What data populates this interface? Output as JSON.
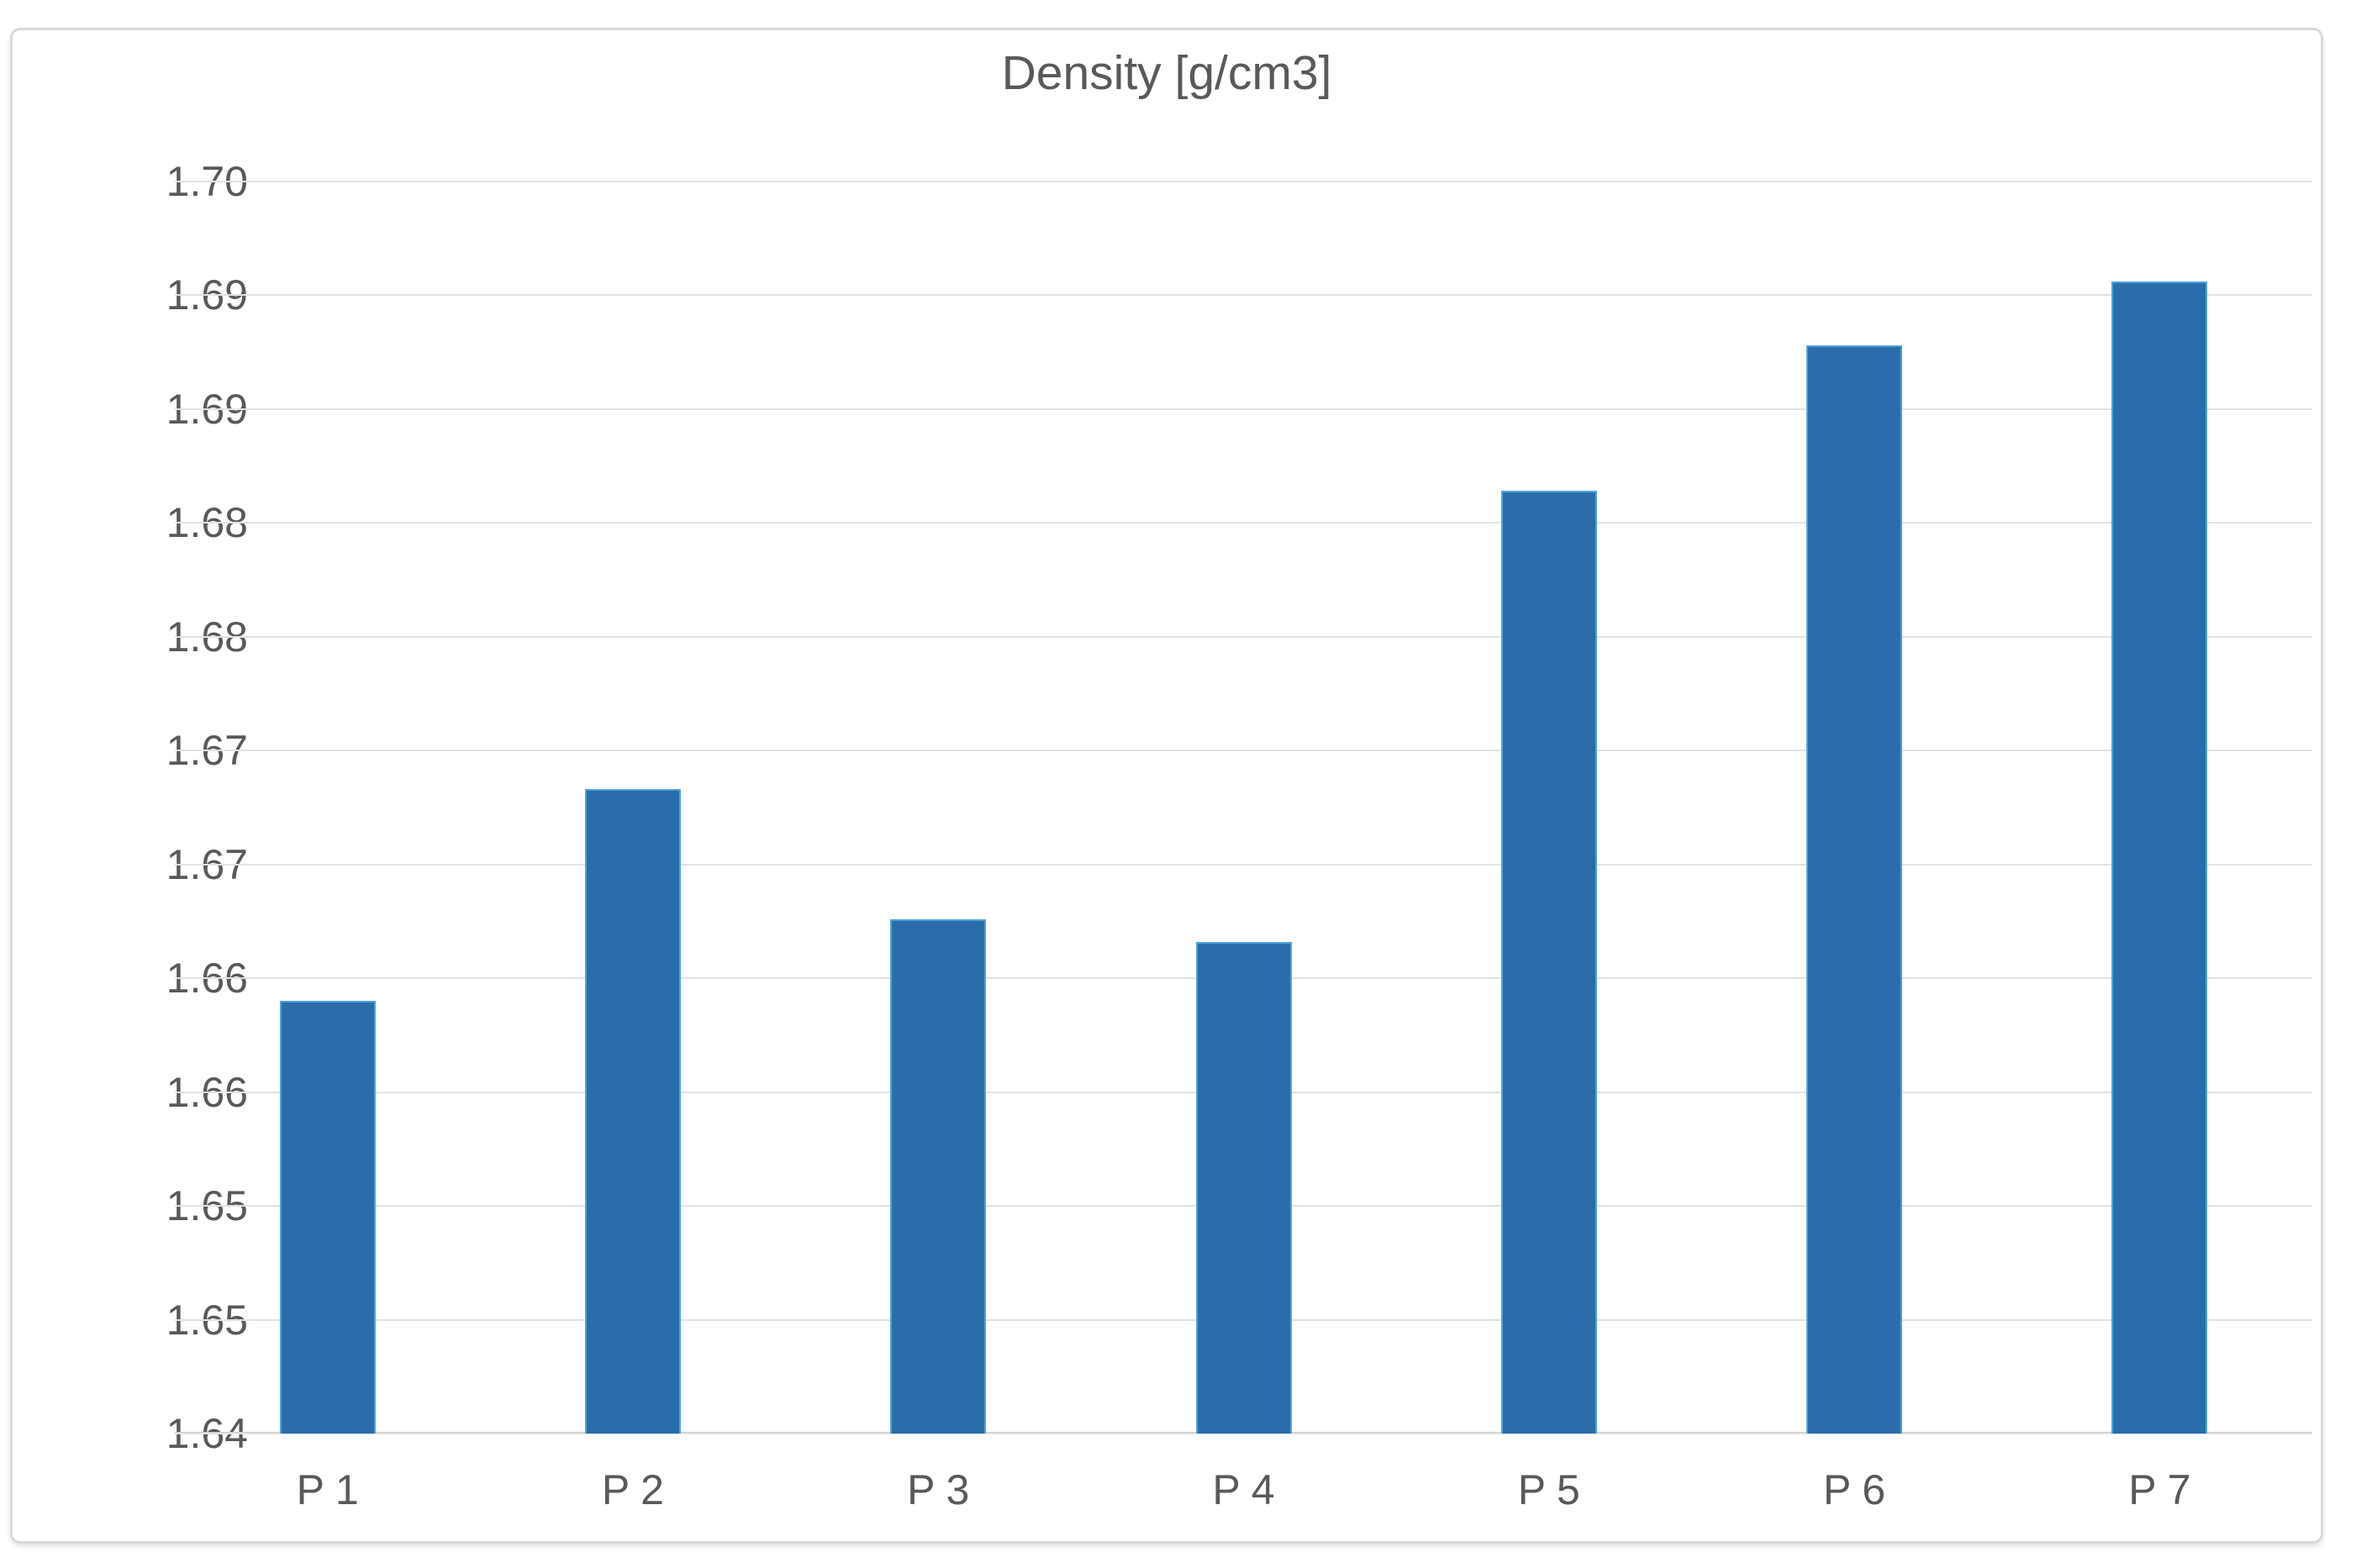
{
  "chart_data": {
    "type": "bar",
    "title": "Density [g/cm3]",
    "categories": [
      "P 1",
      "P 2",
      "P 3",
      "P 4",
      "P 5",
      "P 6",
      "P 7"
    ],
    "values": [
      1.659,
      1.6683,
      1.6626,
      1.6616,
      1.6814,
      1.6878,
      1.6906
    ],
    "series_name": "Density",
    "xlabel": "",
    "ylabel": "",
    "ylim": [
      1.64,
      1.695
    ],
    "y_major_step": 0.005,
    "y_tick_labels_top_to_bottom": [
      "1.70",
      "1.69",
      "1.69",
      "1.68",
      "1.68",
      "1.67",
      "1.67",
      "1.66",
      "1.66",
      "1.65",
      "1.65",
      "1.64"
    ],
    "y_tick_label_format": "2 decimals (duplicates from 0.005 steps)",
    "grid": true,
    "legend": "none",
    "colors": {
      "bar_fill": "#2B6DAA",
      "bar_edge_highlight": "#4FA3D9",
      "gridline": "#E2E2E2",
      "axis_line": "#C9C9C9",
      "text": "#595959",
      "chart_border": "#D9D9D9",
      "background": "#FFFFFF"
    }
  }
}
